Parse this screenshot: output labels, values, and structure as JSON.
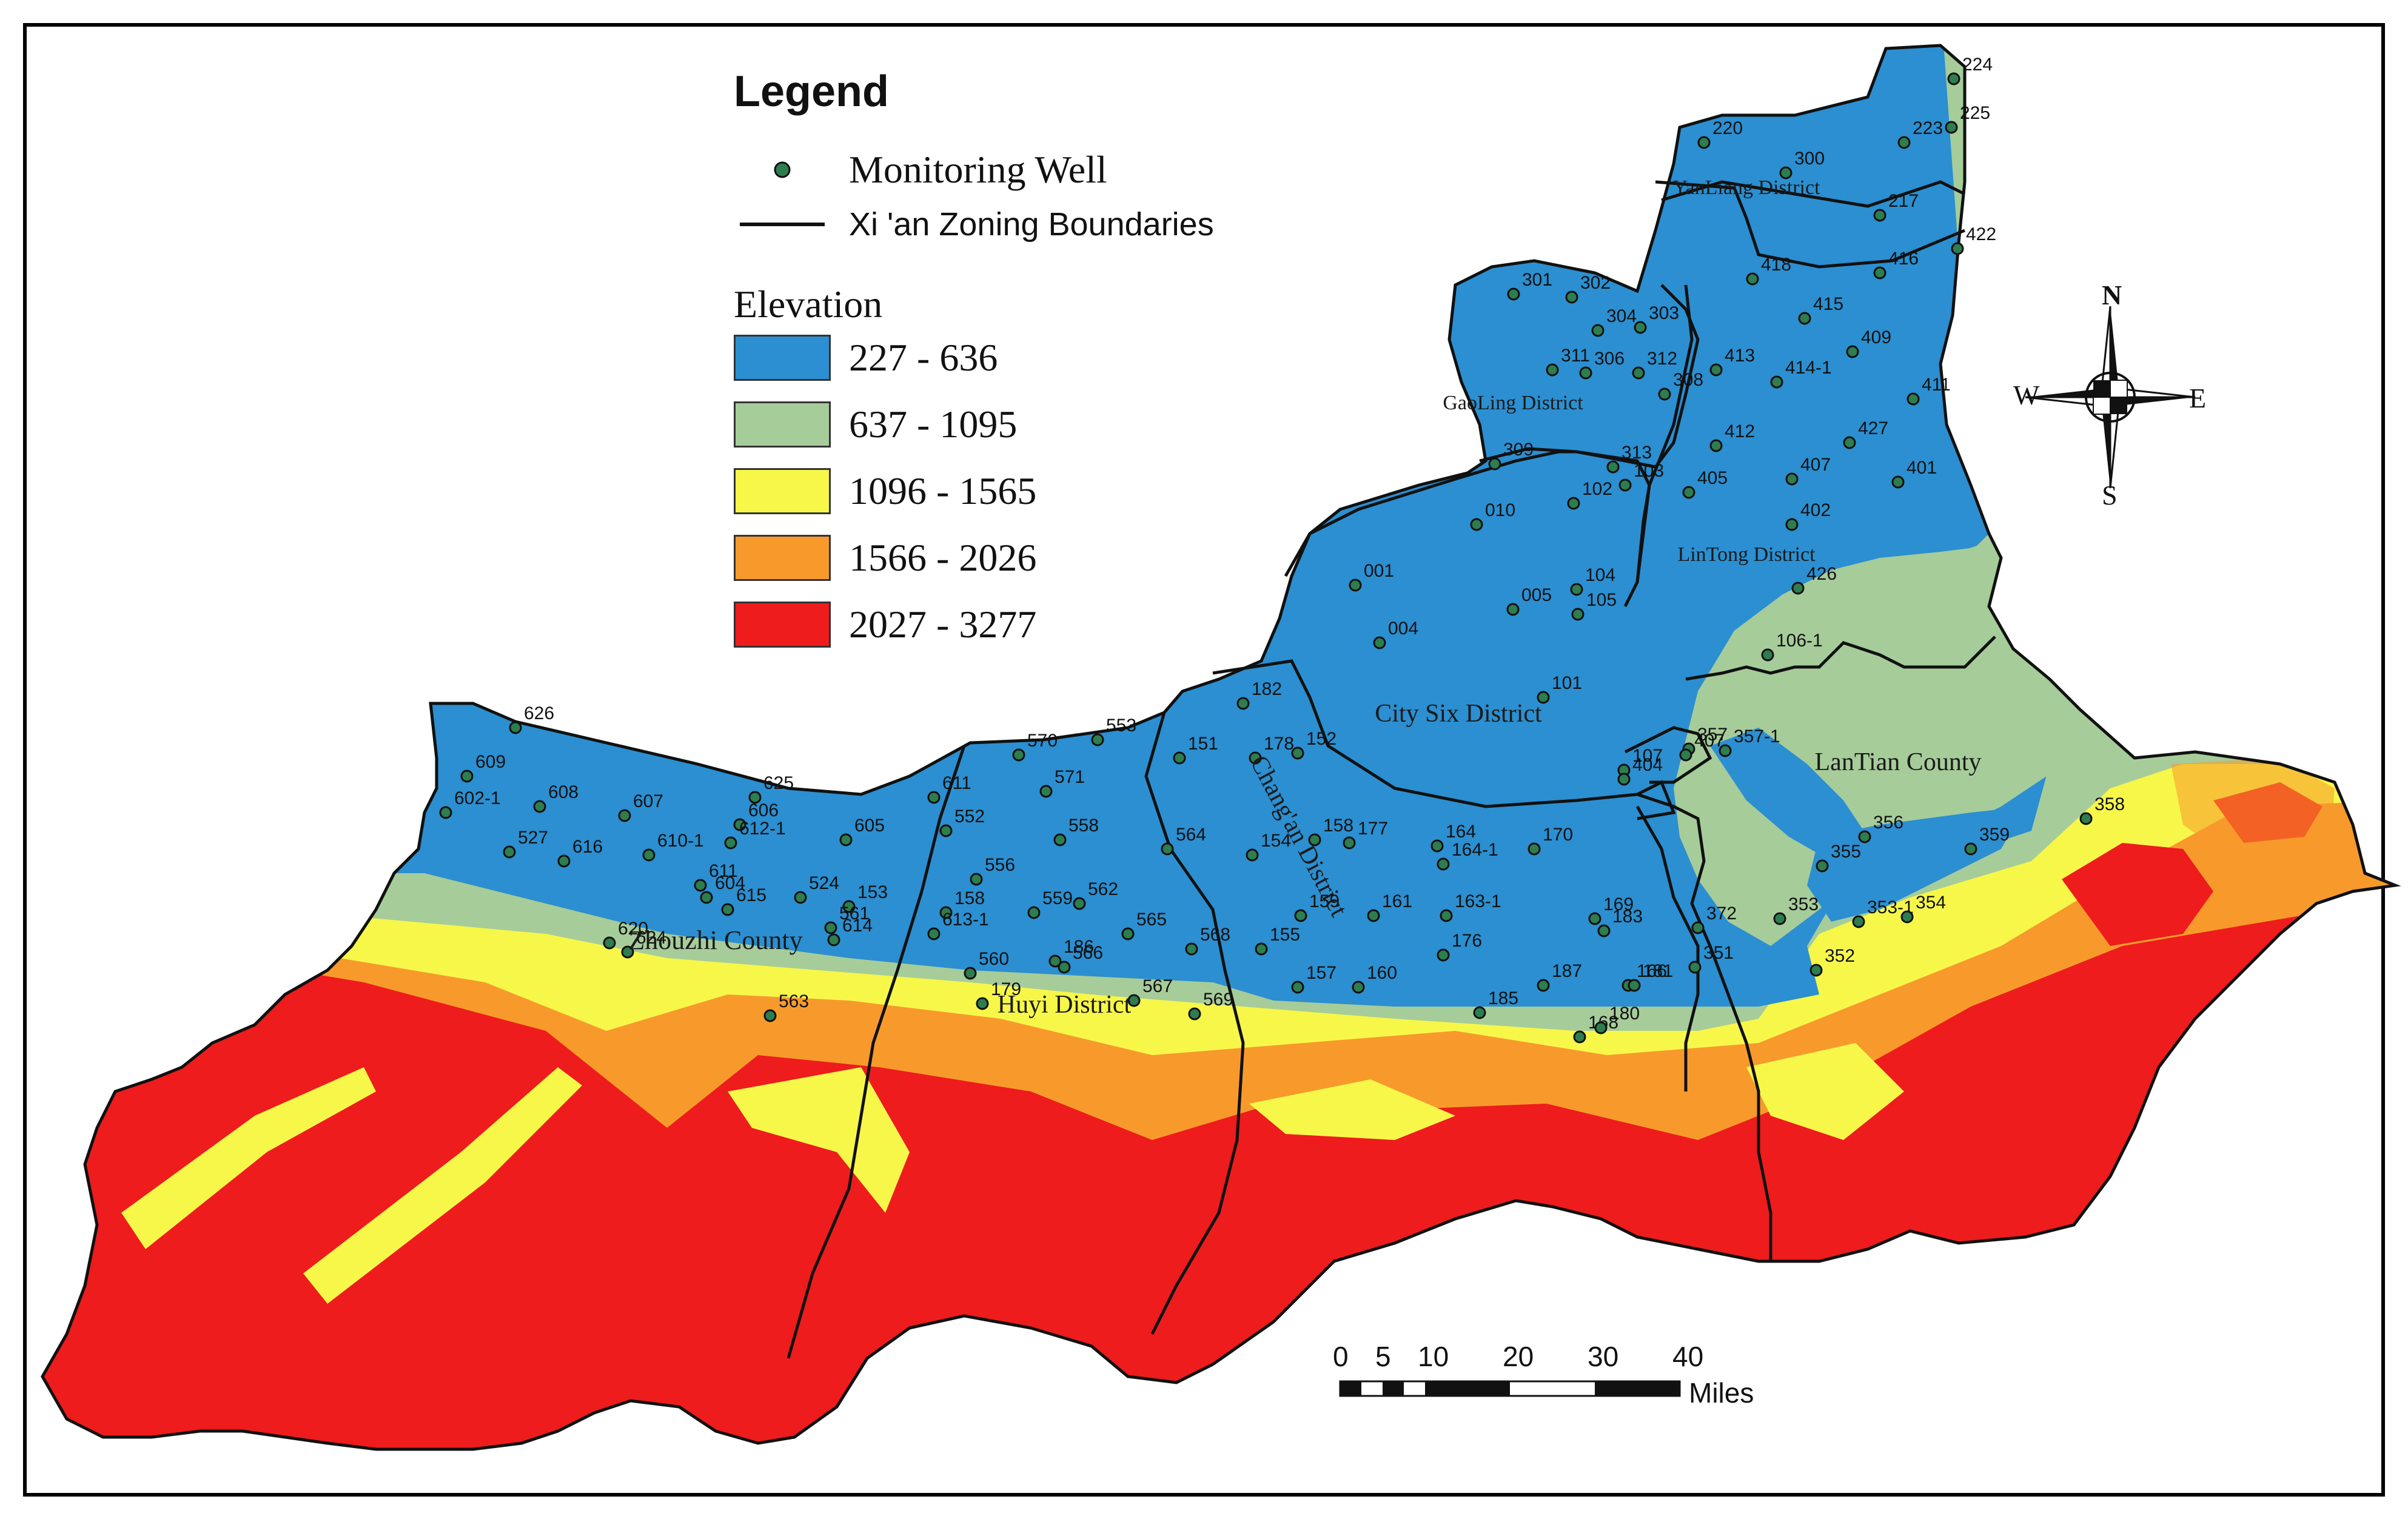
{
  "legend": {
    "title": "Legend",
    "well_label": "Monitoring Well",
    "boundary_label": "Xi 'an Zoning Boundaries",
    "elevation_title": "Elevation",
    "classes": [
      {
        "label": "227 - 636",
        "color": "#2b8fd1"
      },
      {
        "label": "637 - 1095",
        "color": "#a6cc9a"
      },
      {
        "label": "1096 - 1565",
        "color": "#f7f74a"
      },
      {
        "label": "1566 - 2026",
        "color": "#f79a2b"
      },
      {
        "label": "2027 - 3277",
        "color": "#ee1c1c"
      }
    ]
  },
  "districts": [
    {
      "name": "YanLiang District"
    },
    {
      "name": "GaoLing District"
    },
    {
      "name": "LinTong District"
    },
    {
      "name": "City Six District"
    },
    {
      "name": "LanTian County"
    },
    {
      "name": "Chang'an District"
    },
    {
      "name": "Zhouzhi County"
    },
    {
      "name": "Huyi District"
    }
  ],
  "wells": [
    {
      "id": "224"
    },
    {
      "id": "225"
    },
    {
      "id": "220"
    },
    {
      "id": "223"
    },
    {
      "id": "300"
    },
    {
      "id": "217"
    },
    {
      "id": "422"
    },
    {
      "id": "418"
    },
    {
      "id": "416"
    },
    {
      "id": "301"
    },
    {
      "id": "302"
    },
    {
      "id": "415"
    },
    {
      "id": "304"
    },
    {
      "id": "303"
    },
    {
      "id": "409"
    },
    {
      "id": "311"
    },
    {
      "id": "306"
    },
    {
      "id": "312"
    },
    {
      "id": "413"
    },
    {
      "id": "414-1"
    },
    {
      "id": "308"
    },
    {
      "id": "411"
    },
    {
      "id": "427"
    },
    {
      "id": "412"
    },
    {
      "id": "309"
    },
    {
      "id": "313"
    },
    {
      "id": "407"
    },
    {
      "id": "401"
    },
    {
      "id": "102"
    },
    {
      "id": "103"
    },
    {
      "id": "405"
    },
    {
      "id": "402"
    },
    {
      "id": "010"
    },
    {
      "id": "001"
    },
    {
      "id": "104"
    },
    {
      "id": "005"
    },
    {
      "id": "105"
    },
    {
      "id": "426"
    },
    {
      "id": "004"
    },
    {
      "id": "106-1"
    },
    {
      "id": "101"
    },
    {
      "id": "182"
    },
    {
      "id": "357"
    },
    {
      "id": "178"
    },
    {
      "id": "151"
    },
    {
      "id": "152"
    },
    {
      "id": "407"
    },
    {
      "id": "357-1"
    },
    {
      "id": "107"
    },
    {
      "id": "404"
    },
    {
      "id": "626"
    },
    {
      "id": "570"
    },
    {
      "id": "553"
    },
    {
      "id": "609"
    },
    {
      "id": "608"
    },
    {
      "id": "625"
    },
    {
      "id": "571"
    },
    {
      "id": "602-1"
    },
    {
      "id": "607"
    },
    {
      "id": "611"
    },
    {
      "id": "552"
    },
    {
      "id": "606"
    },
    {
      "id": "605"
    },
    {
      "id": "612-1"
    },
    {
      "id": "558"
    },
    {
      "id": "527"
    },
    {
      "id": "610-1"
    },
    {
      "id": "616"
    },
    {
      "id": "158"
    },
    {
      "id": "177"
    },
    {
      "id": "164"
    },
    {
      "id": "170"
    },
    {
      "id": "358"
    },
    {
      "id": "356"
    },
    {
      "id": "564"
    },
    {
      "id": "154"
    },
    {
      "id": "164-1"
    },
    {
      "id": "355"
    },
    {
      "id": "359"
    },
    {
      "id": "556"
    },
    {
      "id": "611"
    },
    {
      "id": "604"
    },
    {
      "id": "524"
    },
    {
      "id": "153"
    },
    {
      "id": "615"
    },
    {
      "id": "158"
    },
    {
      "id": "562"
    },
    {
      "id": "559"
    },
    {
      "id": "159"
    },
    {
      "id": "161"
    },
    {
      "id": "163-1"
    },
    {
      "id": "169"
    },
    {
      "id": "353"
    },
    {
      "id": "353-1"
    },
    {
      "id": "354"
    },
    {
      "id": "561"
    },
    {
      "id": "613-1"
    },
    {
      "id": "565"
    },
    {
      "id": "183"
    },
    {
      "id": "372"
    },
    {
      "id": "620"
    },
    {
      "id": "614"
    },
    {
      "id": "624"
    },
    {
      "id": "568"
    },
    {
      "id": "155"
    },
    {
      "id": "176"
    },
    {
      "id": "186"
    },
    {
      "id": "566"
    },
    {
      "id": "352"
    },
    {
      "id": "560"
    },
    {
      "id": "351"
    },
    {
      "id": "157"
    },
    {
      "id": "160"
    },
    {
      "id": "187"
    },
    {
      "id": "166"
    },
    {
      "id": "181"
    },
    {
      "id": "179"
    },
    {
      "id": "567"
    },
    {
      "id": "185"
    },
    {
      "id": "569"
    },
    {
      "id": "563"
    },
    {
      "id": "168"
    },
    {
      "id": "180"
    }
  ],
  "scale_bar": {
    "ticks": [
      "0",
      "5",
      "10",
      "20",
      "30",
      "40"
    ],
    "unit": "Miles"
  },
  "compass": {
    "n": "N",
    "s": "S",
    "e": "E",
    "w": "W"
  }
}
